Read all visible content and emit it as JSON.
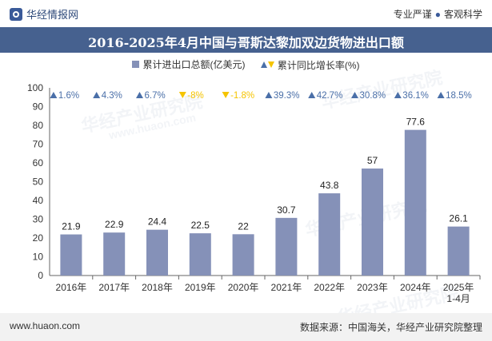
{
  "brand": {
    "name": "华经情报网",
    "icon": "brand-logo-icon"
  },
  "tagline": {
    "left": "专业严谨",
    "right": "客观科学"
  },
  "colors": {
    "bar": "#8591b8",
    "up": "#4a6fa8",
    "down": "#f5c400",
    "title_bg": "#46618f"
  },
  "watermark": {
    "text": "华经产业研究院",
    "url": "www.huaon.com"
  },
  "chart_data": {
    "type": "bar",
    "title": "2016-2025年4月中国与哥斯达黎加双边货物进出口额",
    "categories": [
      "2016年",
      "2017年",
      "2018年",
      "2019年",
      "2020年",
      "2021年",
      "2022年",
      "2023年",
      "2024年",
      "2025年\n1-4月"
    ],
    "series": [
      {
        "name": "累计进出口总额(亿美元)",
        "values": [
          21.9,
          22.9,
          24.4,
          22.5,
          22,
          30.7,
          43.8,
          57,
          77.6,
          26.1
        ]
      }
    ],
    "value_labels": [
      "21.9",
      "22.9",
      "24.4",
      "22.5",
      "22",
      "30.7",
      "43.8",
      "57",
      "77.6",
      "26.1"
    ],
    "growth_series": {
      "name": "累计同比增长率(%)",
      "labels": [
        "1.6%",
        "4.3%",
        "6.7%",
        "-8%",
        "-1.8%",
        "39.3%",
        "42.7%",
        "30.8%",
        "36.1%",
        "18.5%"
      ],
      "values": [
        1.6,
        4.3,
        6.7,
        -8,
        -1.8,
        39.3,
        42.7,
        30.8,
        36.1,
        18.5
      ]
    },
    "ylim": [
      0,
      100
    ],
    "yticks": [
      0,
      10,
      20,
      30,
      40,
      50,
      60,
      70,
      80,
      90,
      100
    ],
    "xlabel": "",
    "ylabel": "",
    "legend_position": "top-center"
  },
  "footer": {
    "website": "www.huaon.com",
    "source": "数据来源：中国海关，华经产业研究院整理"
  }
}
